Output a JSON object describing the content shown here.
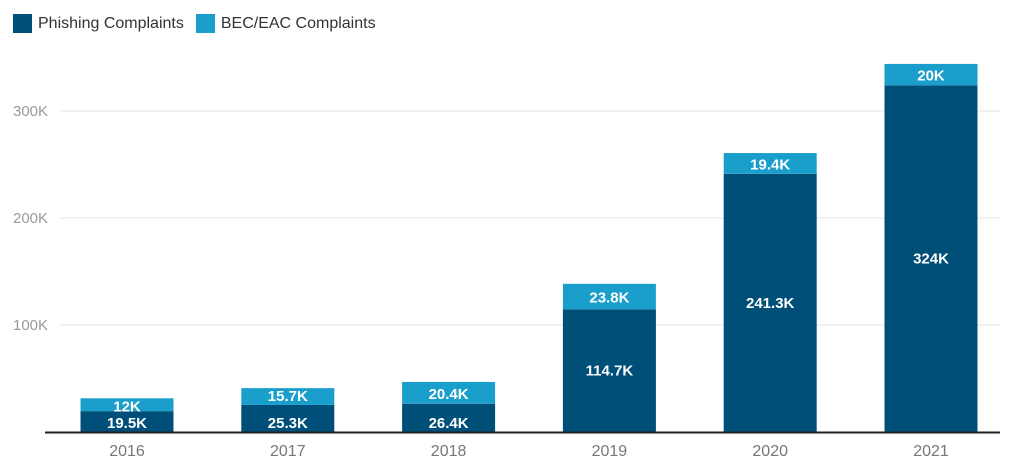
{
  "chart_data": {
    "type": "bar",
    "stacked": true,
    "categories": [
      "2016",
      "2017",
      "2018",
      "2019",
      "2020",
      "2021"
    ],
    "series": [
      {
        "name": "Phishing Complaints",
        "color": "#004f79",
        "values": [
          19500,
          25300,
          26400,
          114700,
          241300,
          324000
        ],
        "labels": [
          "19.5K",
          "25.3K",
          "26.4K",
          "114.7K",
          "241.3K",
          "324K"
        ]
      },
      {
        "name": "BEC/EAC Complaints",
        "color": "#1a9fcc",
        "values": [
          12000,
          15700,
          20400,
          23800,
          19400,
          20000
        ],
        "labels": [
          "12K",
          "15.7K",
          "20.4K",
          "23.8K",
          "19.4K",
          "20K"
        ]
      }
    ],
    "yticks": [
      {
        "value": 100000,
        "label": "100K"
      },
      {
        "value": 200000,
        "label": "200K"
      },
      {
        "value": 300000,
        "label": "300K"
      }
    ],
    "ylim": [
      0,
      400000
    ],
    "grid": true,
    "legend_position": "top-left"
  }
}
